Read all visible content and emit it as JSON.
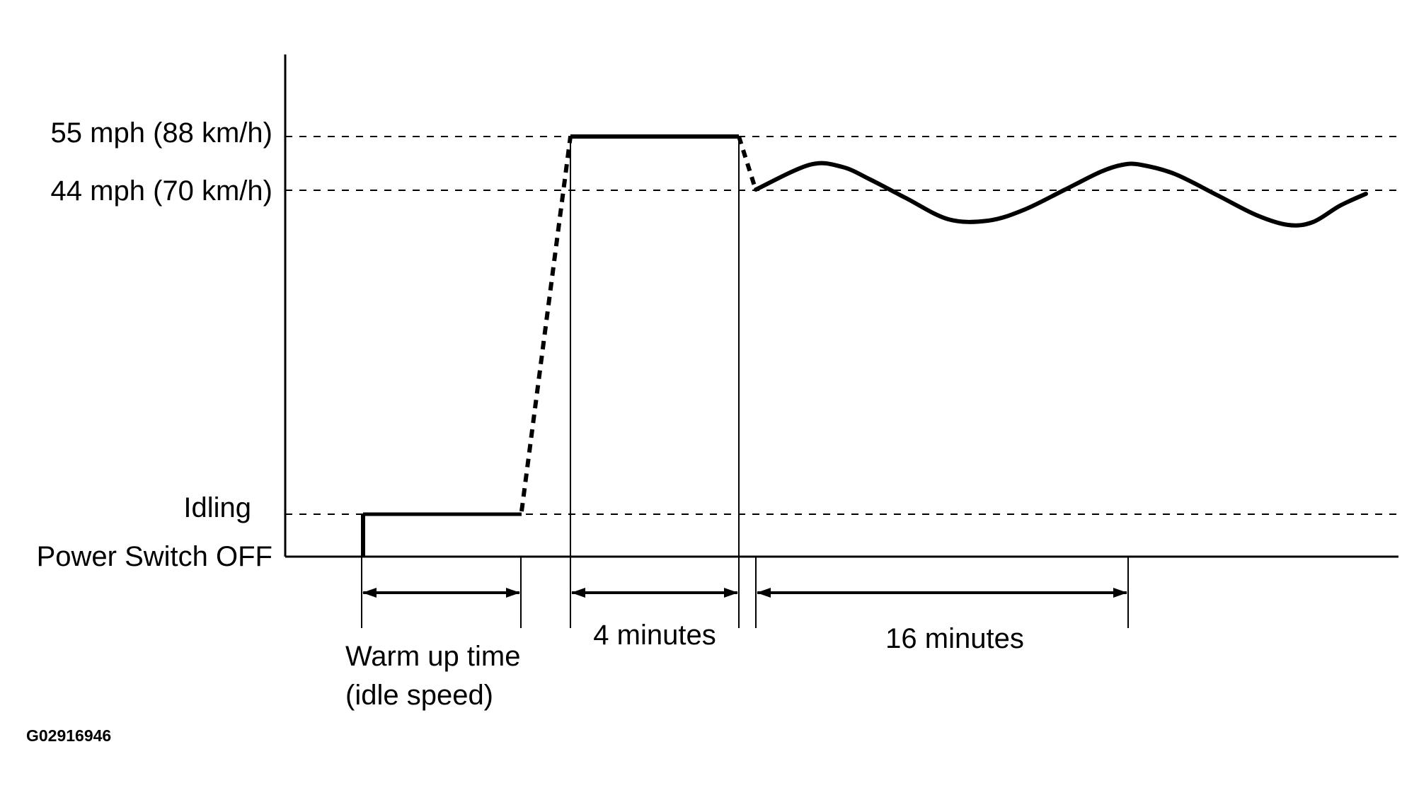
{
  "diagram": {
    "y_labels": {
      "speed_55": "55 mph (88 km/h)",
      "speed_44": "44 mph (70 km/h)",
      "idling": "Idling",
      "power_off": "Power Switch OFF"
    },
    "intervals": {
      "warmup_line1": "Warm up time",
      "warmup_line2": "(idle speed)",
      "four_minutes": "4 minutes",
      "sixteen_minutes": "16 minutes"
    },
    "figure_code": "G02916946"
  },
  "colors": {
    "ink": "#000000",
    "background": "#ffffff"
  }
}
